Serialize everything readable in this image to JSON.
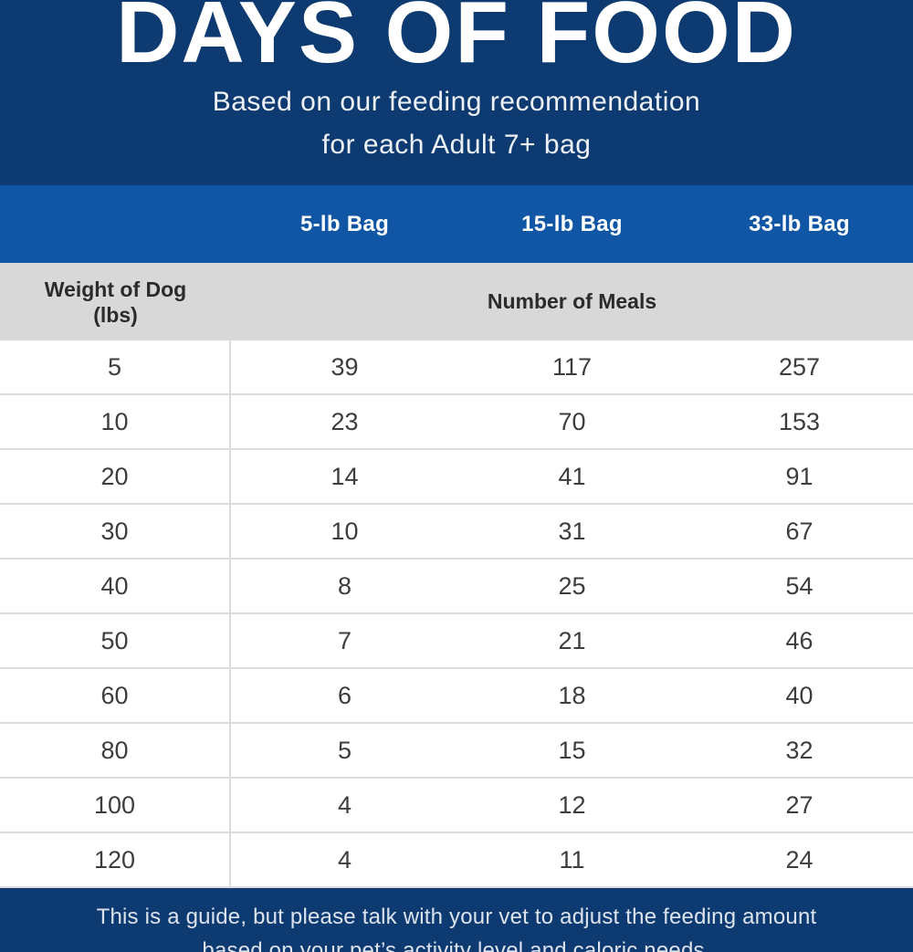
{
  "header": {
    "title": "DAYS OF FOOD",
    "subtitle_line1": "Based on our feeding recommendation",
    "subtitle_line2": "for each Adult 7+ bag"
  },
  "table": {
    "bag_columns": [
      "5-lb Bag",
      "15-lb Bag",
      "33-lb Bag"
    ],
    "weight_header_line1": "Weight of Dog",
    "weight_header_line2": "(lbs)",
    "meals_header": "Number of Meals",
    "rows": [
      {
        "weight": "5",
        "meals": [
          "39",
          "117",
          "257"
        ]
      },
      {
        "weight": "10",
        "meals": [
          "23",
          "70",
          "153"
        ]
      },
      {
        "weight": "20",
        "meals": [
          "14",
          "41",
          "91"
        ]
      },
      {
        "weight": "30",
        "meals": [
          "10",
          "31",
          "67"
        ]
      },
      {
        "weight": "40",
        "meals": [
          "8",
          "25",
          "54"
        ]
      },
      {
        "weight": "50",
        "meals": [
          "7",
          "21",
          "46"
        ]
      },
      {
        "weight": "60",
        "meals": [
          "6",
          "18",
          "40"
        ]
      },
      {
        "weight": "80",
        "meals": [
          "5",
          "15",
          "32"
        ]
      },
      {
        "weight": "100",
        "meals": [
          "4",
          "12",
          "27"
        ]
      },
      {
        "weight": "120",
        "meals": [
          "4",
          "11",
          "24"
        ]
      }
    ]
  },
  "footer": {
    "line1": "This is a guide, but please talk with your vet to adjust the feeding amount",
    "line2": "based on your pet’s activity level and caloric needs."
  },
  "colors": {
    "navy_background": "#0d3a70",
    "header_blue": "#1156a5",
    "subheader_gray": "#d8d8d8",
    "row_divider": "#dcdcdc",
    "cell_text": "#3d3d3d",
    "dark_header_text": "#2b2b2b",
    "title_text": "#ffffff",
    "footer_text": "#dde3ec"
  },
  "chart_data": {
    "type": "table",
    "title": "DAYS OF FOOD",
    "subtitle": "Based on our feeding recommendation for each Adult 7+ bag",
    "value_units": "Number of Meals",
    "columns": [
      "Weight of Dog (lbs)",
      "5-lb Bag",
      "15-lb Bag",
      "33-lb Bag"
    ],
    "rows": [
      [
        5,
        39,
        117,
        257
      ],
      [
        10,
        23,
        70,
        153
      ],
      [
        20,
        14,
        41,
        91
      ],
      [
        30,
        10,
        31,
        67
      ],
      [
        40,
        8,
        25,
        54
      ],
      [
        50,
        7,
        21,
        46
      ],
      [
        60,
        6,
        18,
        40
      ],
      [
        80,
        5,
        15,
        32
      ],
      [
        100,
        4,
        12,
        27
      ],
      [
        120,
        4,
        11,
        24
      ]
    ],
    "footnote": "This is a guide, but please talk with your vet to adjust the feeding amount based on your pet’s activity level and caloric needs."
  }
}
